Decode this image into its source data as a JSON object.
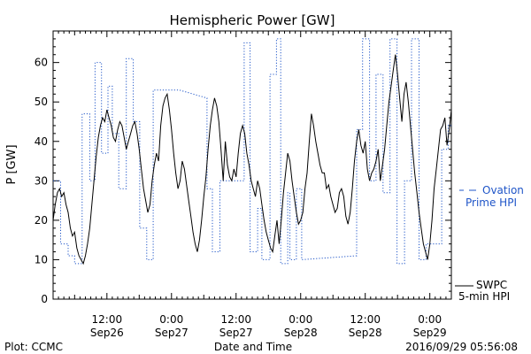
{
  "chart_data": {
    "type": "line",
    "title": "Hemispheric Power [GW]",
    "xlabel": "Date and Time",
    "ylabel": "P [GW]",
    "ylim": [
      0,
      68
    ],
    "xlim_hours": [
      2,
      76
    ],
    "yticks": [
      0,
      10,
      20,
      30,
      40,
      50,
      60
    ],
    "xticks": [
      {
        "h": 12,
        "time": "12:00",
        "date": "Sep26"
      },
      {
        "h": 24,
        "time": "0:00",
        "date": "Sep27"
      },
      {
        "h": 36,
        "time": "12:00",
        "date": "Sep27"
      },
      {
        "h": 48,
        "time": "0:00",
        "date": "Sep28"
      },
      {
        "h": 60,
        "time": "12:00",
        "date": "Sep28"
      },
      {
        "h": 72,
        "time": "0:00",
        "date": "Sep29"
      }
    ],
    "series": [
      {
        "name": "SWPC 5-min HPI",
        "color": "#000000",
        "style": "solid",
        "x": [
          2.0,
          2.4,
          2.8,
          3.2,
          3.6,
          4.0,
          4.4,
          4.8,
          5.2,
          5.6,
          6.0,
          6.4,
          6.8,
          7.2,
          7.6,
          8.0,
          8.4,
          8.8,
          9.2,
          9.6,
          10.0,
          10.4,
          10.8,
          11.2,
          11.6,
          12.0,
          12.4,
          12.8,
          13.2,
          13.6,
          14.0,
          14.4,
          14.8,
          15.2,
          15.6,
          16.0,
          16.4,
          16.8,
          17.2,
          17.6,
          18.0,
          18.4,
          18.8,
          19.2,
          19.6,
          20.0,
          20.4,
          20.8,
          21.2,
          21.6,
          22.0,
          22.4,
          22.8,
          23.2,
          23.6,
          24.0,
          24.4,
          24.8,
          25.2,
          25.6,
          26.0,
          26.4,
          26.8,
          27.2,
          27.6,
          28.0,
          28.4,
          28.8,
          29.2,
          29.6,
          30.0,
          30.4,
          30.8,
          31.2,
          31.6,
          32.0,
          32.4,
          32.8,
          33.2,
          33.6,
          34.0,
          34.4,
          34.8,
          35.2,
          35.6,
          36.0,
          36.4,
          36.8,
          37.2,
          37.6,
          38.0,
          38.4,
          38.8,
          39.2,
          39.6,
          40.0,
          40.4,
          40.8,
          41.2,
          41.6,
          42.0,
          42.4,
          42.8,
          43.2,
          43.6,
          44.0,
          44.4,
          44.8,
          45.2,
          45.6,
          46.0,
          46.4,
          46.8,
          47.2,
          47.6,
          48.0,
          48.4,
          48.8,
          49.2,
          49.6,
          50.0,
          50.4,
          50.8,
          51.2,
          51.6,
          52.0,
          52.4,
          52.8,
          53.2,
          53.6,
          54.0,
          54.4,
          54.8,
          55.2,
          55.6,
          56.0,
          56.4,
          56.8,
          57.2,
          57.6,
          58.0,
          58.4,
          58.8,
          59.2,
          59.6,
          60.0,
          60.4,
          60.8,
          61.2,
          61.6,
          62.0,
          62.4,
          62.8,
          63.2,
          63.6,
          64.0,
          64.4,
          64.8,
          65.2,
          65.6,
          66.0,
          66.4,
          66.8,
          67.2,
          67.6,
          68.0,
          68.4,
          68.8,
          69.2,
          69.6,
          70.0,
          70.4,
          70.8,
          71.2,
          71.6,
          72.0,
          72.4,
          72.8,
          73.2,
          73.6,
          74.0,
          74.4,
          74.8,
          75.2,
          75.6,
          76.0
        ],
        "values": [
          20,
          24,
          27,
          28,
          26,
          27,
          24,
          22,
          18,
          16,
          17,
          13,
          11,
          10,
          9,
          11,
          14,
          18,
          24,
          30,
          36,
          41,
          44,
          46,
          45,
          48,
          46,
          44,
          41,
          40,
          43,
          45,
          44,
          41,
          38,
          40,
          42,
          44,
          45,
          42,
          38,
          33,
          28,
          25,
          22,
          24,
          30,
          34,
          37,
          35,
          44,
          49,
          51,
          52,
          48,
          43,
          37,
          32,
          28,
          30,
          35,
          33,
          29,
          25,
          21,
          17,
          14,
          12,
          15,
          20,
          26,
          31,
          38,
          44,
          48,
          51,
          49,
          45,
          38,
          30,
          40,
          34,
          31,
          30,
          33,
          31,
          37,
          42,
          44,
          42,
          37,
          34,
          30,
          28,
          26,
          30,
          28,
          24,
          20,
          17,
          15,
          13,
          12,
          16,
          20,
          14,
          20,
          27,
          32,
          37,
          35,
          30,
          26,
          22,
          19,
          20,
          22,
          28,
          32,
          40,
          47,
          44,
          40,
          37,
          34,
          32,
          32,
          28,
          29,
          26,
          24,
          22,
          23,
          27,
          28,
          26,
          21,
          19,
          22,
          28,
          35,
          40,
          43,
          39,
          37,
          40,
          33,
          30,
          32,
          33,
          35,
          38,
          30,
          34,
          38,
          44,
          50,
          54,
          58,
          62,
          57,
          51,
          45,
          52,
          55,
          50,
          44,
          38,
          32,
          27,
          22,
          18,
          14,
          12,
          10,
          14,
          20,
          28,
          33,
          38,
          43,
          44,
          46,
          39,
          43,
          48
        ]
      },
      {
        "name": "Ovation Prime HPI",
        "color": "#1f55c8",
        "style": "dotted",
        "points": [
          [
            2,
            30
          ],
          [
            3.4,
            30
          ],
          [
            3.4,
            14
          ],
          [
            4.8,
            14
          ],
          [
            4.8,
            11
          ],
          [
            6.0,
            11
          ],
          [
            6.0,
            9
          ],
          [
            7.4,
            9
          ],
          [
            7.4,
            47
          ],
          [
            8.8,
            47
          ],
          [
            8.8,
            30
          ],
          [
            9.8,
            30
          ],
          [
            9.8,
            60
          ],
          [
            11.0,
            60
          ],
          [
            11.0,
            37
          ],
          [
            12.2,
            37
          ],
          [
            12.2,
            54
          ],
          [
            13.0,
            54
          ],
          [
            13.0,
            42
          ],
          [
            14.2,
            42
          ],
          [
            14.2,
            28
          ],
          [
            15.6,
            28
          ],
          [
            15.6,
            61
          ],
          [
            16.9,
            61
          ],
          [
            16.9,
            45
          ],
          [
            18.1,
            45
          ],
          [
            18.1,
            18
          ],
          [
            19.4,
            18
          ],
          [
            19.4,
            10
          ],
          [
            20.6,
            10
          ],
          [
            20.6,
            53
          ],
          [
            25.5,
            53
          ],
          [
            30.6,
            51
          ],
          [
            30.6,
            28
          ],
          [
            31.6,
            28
          ],
          [
            31.6,
            12
          ],
          [
            33.0,
            12
          ],
          [
            33.0,
            30
          ],
          [
            37.5,
            30
          ],
          [
            37.5,
            65
          ],
          [
            38.6,
            65
          ],
          [
            38.6,
            12
          ],
          [
            40.0,
            12
          ],
          [
            40.0,
            23
          ],
          [
            40.8,
            23
          ],
          [
            40.8,
            10
          ],
          [
            42.3,
            10
          ],
          [
            42.3,
            57
          ],
          [
            43.5,
            57
          ],
          [
            43.5,
            66
          ],
          [
            44.3,
            66
          ],
          [
            44.3,
            9
          ],
          [
            45.6,
            9
          ],
          [
            45.6,
            27
          ],
          [
            46.0,
            27
          ],
          [
            46.0,
            10
          ],
          [
            47.2,
            10
          ],
          [
            47.2,
            28
          ],
          [
            48.2,
            28
          ],
          [
            48.2,
            10
          ],
          [
            58.4,
            11
          ],
          [
            58.4,
            43
          ],
          [
            59.5,
            43
          ],
          [
            59.5,
            66
          ],
          [
            60.8,
            66
          ],
          [
            60.8,
            30
          ],
          [
            62.0,
            30
          ],
          [
            62.0,
            57
          ],
          [
            63.3,
            57
          ],
          [
            63.3,
            27
          ],
          [
            64.6,
            27
          ],
          [
            64.6,
            66
          ],
          [
            65.9,
            66
          ],
          [
            65.9,
            9
          ],
          [
            67.3,
            9
          ],
          [
            67.3,
            30
          ],
          [
            68.6,
            30
          ],
          [
            68.6,
            66
          ],
          [
            70.0,
            66
          ],
          [
            70.0,
            10
          ],
          [
            71.3,
            10
          ],
          [
            71.3,
            14
          ],
          [
            74.2,
            14
          ],
          [
            74.2,
            38
          ],
          [
            75.4,
            38
          ],
          [
            75.4,
            44
          ],
          [
            76,
            44
          ]
        ]
      }
    ],
    "legend": [
      {
        "key": "ovation",
        "line1": "Ovation",
        "line2": "Prime HPI",
        "color": "#1f55c8"
      },
      {
        "key": "swpc",
        "line1": "SWPC",
        "line2": "5-min HPI",
        "color": "#000000"
      }
    ]
  },
  "footer": {
    "plot_credit": "Plot: CCMC",
    "timestamp": "2016/09/29 05:56:08"
  },
  "colors": {
    "observed": "#000000",
    "model": "#1f55c8",
    "axes": "#000000"
  }
}
